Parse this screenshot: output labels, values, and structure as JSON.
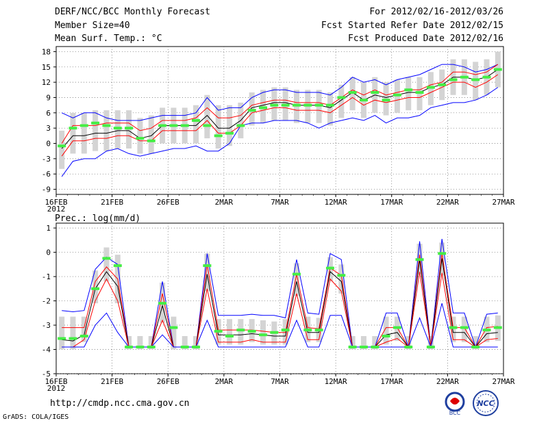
{
  "header": {
    "title": "DERF/NCC/BCC Monthly Forecast",
    "member_size": "Member Size=40",
    "variable_temp": "Mean Surf. Temp.: °C",
    "forecast_period": "For 2012/02/16-2012/03/26",
    "started_date": "Fcst Started Refer Date 2012/02/15",
    "produced_date": "Fcst Produced Date 2012/02/16"
  },
  "footer": {
    "url": "http://cmdp.ncc.cma.gov.cn",
    "credit": "GrADS: COLA/IGES",
    "logo_bcc": "BCC",
    "logo_ncc": "NCC"
  },
  "colors": {
    "max_min": "#0000ff",
    "quartile": "#ff0000",
    "median": "#000000",
    "mean": "#44ee44",
    "spread": "#d4d4d4",
    "grid": "#666666"
  },
  "chart_data": [
    {
      "type": "line",
      "title": "Mean Surf. Temp.: °C",
      "x_labels": [
        "16FEB",
        "21FEB",
        "26FEB",
        "2MAR",
        "7MAR",
        "12MAR",
        "17MAR",
        "22MAR",
        "27MAR"
      ],
      "x_label_year": "2012",
      "days": 40,
      "ylim": [
        -10,
        19
      ],
      "yticks": [
        -9,
        -6,
        -3,
        0,
        3,
        6,
        9,
        12,
        15,
        18
      ],
      "series": [
        {
          "name": "max",
          "values": [
            6,
            5,
            6,
            6,
            5,
            4.5,
            4.5,
            4.5,
            5,
            5.5,
            5.5,
            5.5,
            6,
            9,
            6.5,
            7,
            7,
            9,
            10,
            10.5,
            10.5,
            10,
            10,
            10,
            9.5,
            11,
            13,
            12,
            12.5,
            11.5,
            12.5,
            13,
            13.5,
            14.5,
            15.5,
            15.5,
            15,
            14,
            14.5,
            15.5
          ]
        },
        {
          "name": "q_upper",
          "values": [
            0,
            3.5,
            3.5,
            3.5,
            4,
            4,
            4,
            2.5,
            3,
            4.5,
            4.5,
            4.5,
            5,
            7,
            5,
            5,
            5.5,
            7.5,
            8,
            8.5,
            8.5,
            8,
            8,
            8,
            7.5,
            9,
            10.5,
            9.5,
            10.5,
            9.5,
            10,
            10.5,
            10.5,
            11.5,
            12,
            14,
            14,
            13.5,
            14,
            15.5
          ]
        },
        {
          "name": "median",
          "values": [
            -1,
            1.5,
            1.5,
            2,
            2,
            2.5,
            2.5,
            1,
            1.5,
            3.5,
            3.5,
            3.5,
            3.5,
            5.5,
            3,
            3,
            4.5,
            7,
            7.5,
            8,
            8,
            7.5,
            7.5,
            7.5,
            7,
            8.5,
            10,
            8.5,
            9.5,
            9,
            9.5,
            10,
            10,
            11,
            11.5,
            13,
            13,
            12.5,
            13,
            14.5
          ]
        },
        {
          "name": "q_lower",
          "values": [
            -2.5,
            0.5,
            0.5,
            1,
            1,
            1.5,
            1.5,
            0.5,
            0.5,
            2.5,
            2.5,
            2.5,
            2.5,
            4.5,
            2,
            2,
            3.5,
            6,
            6.5,
            7,
            7,
            6.5,
            6.5,
            6.5,
            6,
            7.5,
            9,
            7.5,
            8.5,
            8,
            8.5,
            9,
            9,
            10,
            11,
            12,
            12,
            11,
            12,
            13.5
          ]
        },
        {
          "name": "min",
          "values": [
            -6.5,
            -3.5,
            -3,
            -3,
            -1.5,
            -1,
            -2,
            -2.5,
            -2,
            -1.5,
            -1,
            -1,
            -0.5,
            -1.5,
            -1.5,
            0,
            3.5,
            4,
            4,
            4.5,
            4.5,
            4.5,
            4,
            3,
            4,
            4.5,
            5,
            4.5,
            5.5,
            4,
            5,
            5,
            5.5,
            7,
            7.5,
            8,
            8,
            8.5,
            9.5,
            11
          ]
        },
        {
          "name": "mean",
          "values": [
            -0.5,
            3,
            3.5,
            4,
            3.5,
            3,
            3,
            1,
            0.5,
            3.5,
            3.5,
            3.5,
            4.5,
            3.5,
            1.5,
            2,
            3.5,
            6.5,
            7,
            7.5,
            7.5,
            7.5,
            7.5,
            7.5,
            7.5,
            9,
            10,
            8.5,
            10,
            8.5,
            9.5,
            10.5,
            10,
            11,
            11.5,
            12.5,
            13,
            12.5,
            13,
            14.5
          ]
        }
      ]
    },
    {
      "type": "line",
      "title": "Prec.: log(mm/d)",
      "x_labels": [
        "16FEB",
        "21FEB",
        "26FEB",
        "2MAR",
        "7MAR",
        "12MAR",
        "17MAR",
        "22MAR",
        "27MAR"
      ],
      "x_label_year": "2012",
      "days": 40,
      "ylim": [
        -5,
        1.2
      ],
      "yticks": [
        -5,
        -4,
        -3,
        -2,
        -1,
        0,
        1
      ],
      "series": [
        {
          "name": "max",
          "values": [
            -2.4,
            -2.45,
            -2.4,
            -0.7,
            -0.2,
            -0.5,
            -3.9,
            -3.9,
            -3.9,
            -1.2,
            -3.9,
            -3.9,
            -3.9,
            -0.05,
            -2.6,
            -2.6,
            -2.6,
            -2.55,
            -2.6,
            -2.6,
            -2.7,
            -0.3,
            -2.5,
            -2.55,
            -0.05,
            -0.3,
            -3.9,
            -3.9,
            -3.9,
            -2.5,
            -2.5,
            -3.9,
            0.45,
            -3.9,
            0.55,
            -2.5,
            -2.5,
            -3.9,
            -2.55,
            -2.5
          ]
        },
        {
          "name": "q_upper",
          "values": [
            -3.1,
            -3.1,
            -3.1,
            -1.2,
            -0.6,
            -1.1,
            -3.9,
            -3.9,
            -3.9,
            -1.7,
            -3.9,
            -3.9,
            -3.9,
            -0.5,
            -3.2,
            -3.2,
            -3.2,
            -3.2,
            -3.25,
            -3.3,
            -3.3,
            -0.9,
            -3.1,
            -3.15,
            -0.65,
            -0.95,
            -3.9,
            -3.9,
            -3.9,
            -3.1,
            -3.1,
            -3.9,
            -0.1,
            -3.9,
            -0.05,
            -3.1,
            -3.1,
            -3.9,
            -3.1,
            -3.05
          ]
        },
        {
          "name": "median",
          "values": [
            -3.6,
            -3.65,
            -3.4,
            -1.5,
            -0.8,
            -1.4,
            -3.9,
            -3.9,
            -3.9,
            -2.2,
            -3.9,
            -3.9,
            -3.9,
            -0.9,
            -3.4,
            -3.4,
            -3.4,
            -3.35,
            -3.4,
            -3.45,
            -3.45,
            -1.2,
            -3.3,
            -3.3,
            -0.8,
            -1.2,
            -3.9,
            -3.9,
            -3.9,
            -3.4,
            -3.3,
            -3.9,
            -0.3,
            -3.9,
            -0.25,
            -3.3,
            -3.3,
            -3.9,
            -3.35,
            -3.3
          ]
        },
        {
          "name": "q_lower",
          "values": [
            -3.9,
            -3.9,
            -3.6,
            -2.0,
            -1.1,
            -2.0,
            -3.9,
            -3.9,
            -3.9,
            -2.8,
            -3.9,
            -3.9,
            -3.9,
            -1.5,
            -3.7,
            -3.7,
            -3.7,
            -3.6,
            -3.7,
            -3.7,
            -3.7,
            -1.7,
            -3.6,
            -3.6,
            -1.1,
            -1.6,
            -3.9,
            -3.9,
            -3.9,
            -3.7,
            -3.55,
            -3.9,
            -0.8,
            -3.9,
            -0.85,
            -3.6,
            -3.6,
            -3.9,
            -3.6,
            -3.55
          ]
        },
        {
          "name": "min",
          "values": [
            -3.9,
            -3.9,
            -3.9,
            -3.0,
            -2.5,
            -3.3,
            -3.9,
            -3.9,
            -3.9,
            -3.4,
            -3.9,
            -3.9,
            -3.9,
            -2.8,
            -3.9,
            -3.9,
            -3.9,
            -3.9,
            -3.9,
            -3.9,
            -3.9,
            -2.8,
            -3.9,
            -3.9,
            -2.6,
            -2.6,
            -3.9,
            -3.9,
            -3.9,
            -3.9,
            -3.9,
            -3.9,
            -2.7,
            -3.9,
            -2.1,
            -3.9,
            -3.9,
            -3.9,
            -3.9,
            -3.9
          ]
        },
        {
          "name": "mean",
          "values": [
            -3.55,
            -3.55,
            -3.45,
            -1.5,
            -0.25,
            -0.55,
            -3.9,
            -3.9,
            -3.9,
            -2.1,
            -3.1,
            -3.9,
            -3.9,
            -0.55,
            -3.25,
            -3.45,
            -3.2,
            -3.25,
            -3.4,
            -3.3,
            -3.2,
            -0.9,
            -3.2,
            -3.2,
            -0.65,
            -0.95,
            -3.9,
            -3.9,
            -3.9,
            -3.45,
            -3.1,
            -3.9,
            -0.3,
            -3.9,
            -0.05,
            -3.1,
            -3.1,
            -3.9,
            -3.2,
            -3.1
          ]
        }
      ]
    }
  ]
}
